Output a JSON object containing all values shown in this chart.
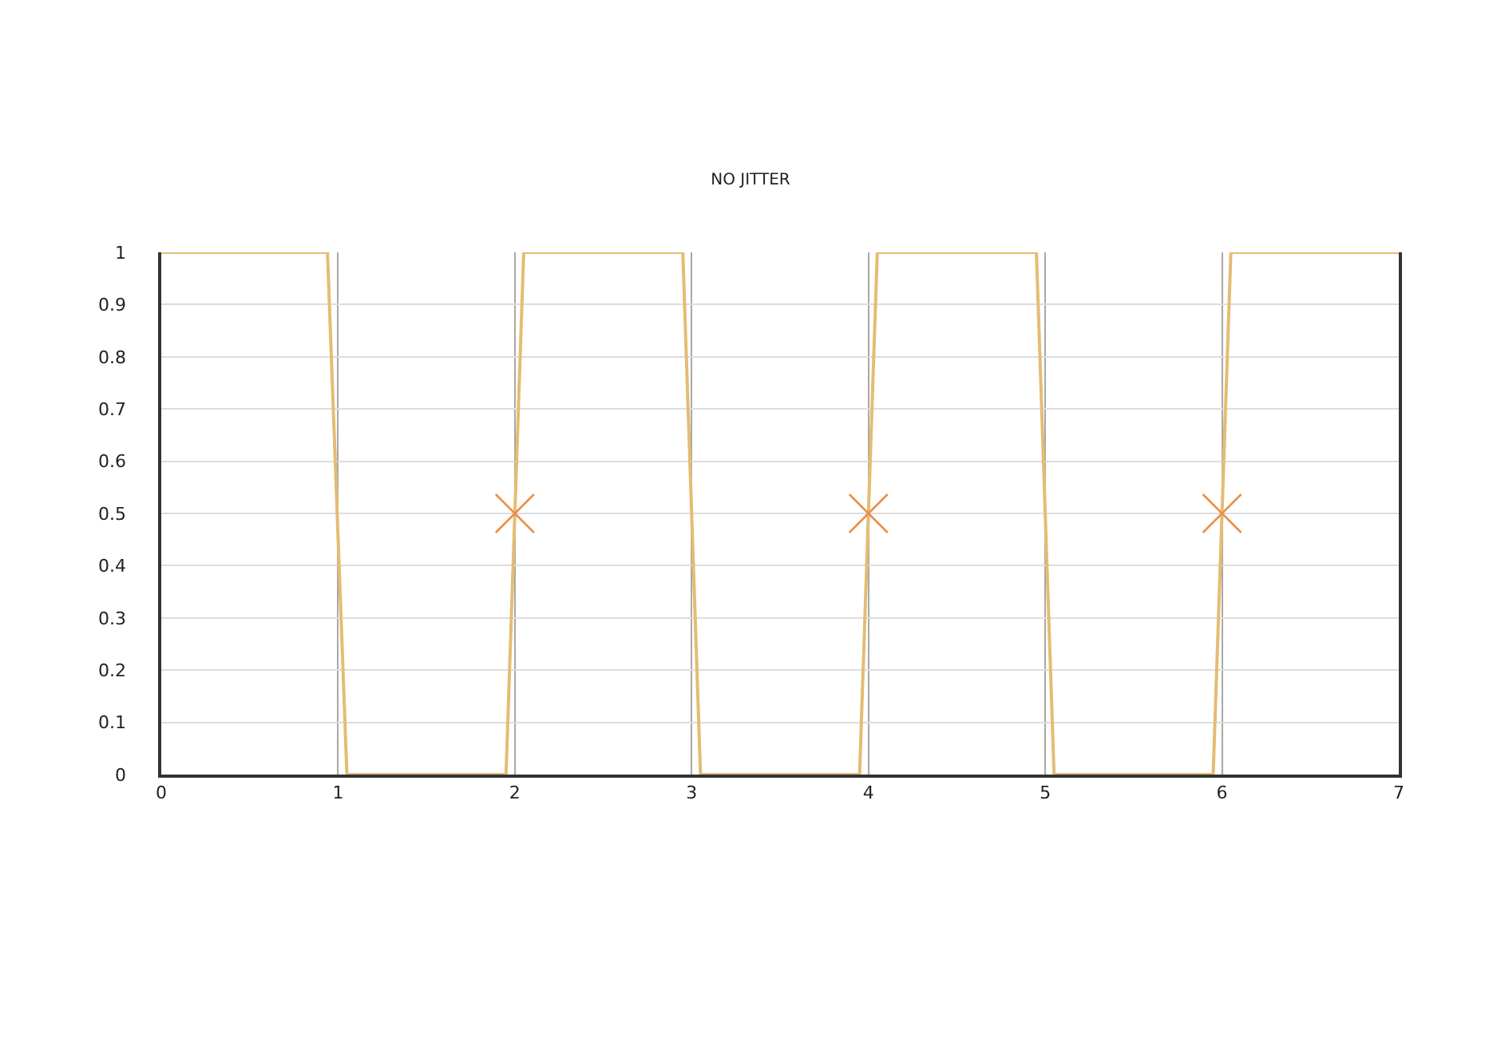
{
  "chart_data": {
    "type": "line",
    "title": "NO JITTER",
    "series": [
      {
        "color": "#e3bd74",
        "x": [
          0,
          0.94,
          1.05,
          1.95,
          2.05,
          2.95,
          3.05,
          3.95,
          4.05,
          4.95,
          5.05,
          5.95,
          6.05,
          7
        ],
        "values": [
          1,
          1,
          0,
          0,
          1,
          1,
          0,
          0,
          1,
          1,
          0,
          0,
          1,
          1
        ]
      },
      {
        "type": "scatter",
        "color": "#e8904a",
        "marker": "cross",
        "x": [
          2,
          4,
          6
        ],
        "values": [
          0.5,
          0.5,
          0.5
        ]
      }
    ],
    "xlim": [
      0,
      7
    ],
    "xticks": [
      0,
      1,
      2,
      3,
      4,
      5,
      6,
      7
    ],
    "ylim": [
      0,
      1
    ],
    "yticks": [
      0,
      0.1,
      0.2,
      0.3,
      0.4,
      0.5,
      0.6,
      0.7,
      0.8,
      0.9,
      1
    ],
    "grid": true
  }
}
